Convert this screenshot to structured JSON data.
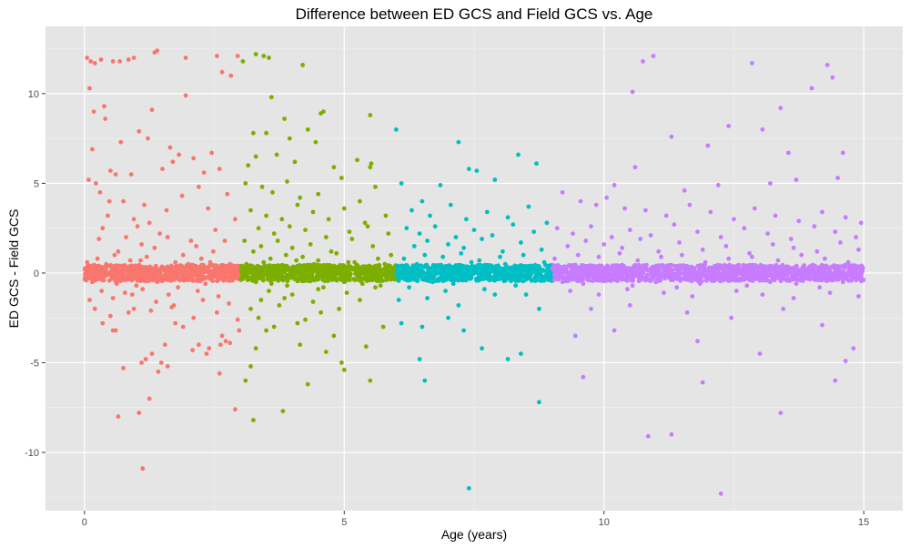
{
  "chart_data": {
    "type": "scatter",
    "title": "Difference between ED GCS and Field GCS vs. Age",
    "xlabel": "Age (years)",
    "ylabel": "ED GCS - Field GCS",
    "xlim": [
      -0.75,
      15.75
    ],
    "ylim": [
      -13.25,
      13.75
    ],
    "xticks": [
      0,
      5,
      10,
      15
    ],
    "yticks": [
      -10,
      -5,
      0,
      5,
      10
    ],
    "grid": true,
    "legend": "none",
    "background": "#e5e5e5",
    "series": [
      {
        "color": "#f8766d",
        "x": [
          0.05,
          0.12,
          0.2,
          0.32,
          0.55,
          0.68,
          0.85,
          0.95,
          1.35,
          1.4,
          1.95,
          2.55,
          2.65,
          2.82,
          2.95,
          0.18,
          0.38,
          1.95,
          0.1,
          0.15,
          0.4,
          1.05,
          1.3,
          0.7,
          1.22,
          1.65,
          1.82,
          2.1,
          2.45,
          0.6,
          0.5,
          0.08,
          0.22,
          0.9,
          1.5,
          1.7,
          2.3,
          2.6,
          2.2,
          0.3,
          0.48,
          0.75,
          1.15,
          1.88,
          2.75,
          0.45,
          0.95,
          1.25,
          1.58,
          2.38,
          2.9,
          0.35,
          0.8,
          1.02,
          1.45,
          2.05,
          2.52,
          0.28,
          1.1,
          1.6,
          2.15,
          2.7,
          0.65,
          1.35,
          1.9,
          2.48,
          0.25,
          0.58,
          0.88,
          1.2,
          1.75,
          2.25,
          2.8,
          0.05,
          0.42,
          0.72,
          1.08,
          1.52,
          2.0,
          2.42,
          2.88,
          0.15,
          0.62,
          1.0,
          1.4,
          1.8,
          2.33,
          2.85,
          0.33,
          0.78,
          1.12,
          1.62,
          2.18,
          2.58,
          0.1,
          0.55,
          0.92,
          1.38,
          1.72,
          2.28,
          2.78,
          0.2,
          0.5,
          0.85,
          1.28,
          1.68,
          2.1,
          2.55,
          2.95,
          1.9,
          2.65,
          2.2,
          0.35,
          0.6,
          2.4,
          1.55,
          1.3,
          1.18,
          1.6,
          2.62,
          2.72,
          0.75,
          2.08,
          1.48,
          0.55,
          0.95,
          1.75,
          2.35,
          2.8,
          2.98,
          1.1,
          2.6,
          1.42,
          1.25,
          0.65,
          1.05,
          2.9,
          1.12
        ],
        "y": [
          12.0,
          11.8,
          11.7,
          11.9,
          11.8,
          11.8,
          11.9,
          12.0,
          12.3,
          12.4,
          12.0,
          12.1,
          11.2,
          11.0,
          12.1,
          9.0,
          9.3,
          9.9,
          10.3,
          6.9,
          8.6,
          7.9,
          9.1,
          7.3,
          7.5,
          7.0,
          6.6,
          6.4,
          6.7,
          5.5,
          5.7,
          5.2,
          5.0,
          5.5,
          5.8,
          6.2,
          5.6,
          5.8,
          4.8,
          4.5,
          4.0,
          4.0,
          3.8,
          4.3,
          4.4,
          3.2,
          3.0,
          2.8,
          3.5,
          3.6,
          3.0,
          2.5,
          2.0,
          2.6,
          2.2,
          1.8,
          2.4,
          1.9,
          1.6,
          2.0,
          1.5,
          1.8,
          1.2,
          1.4,
          1.0,
          1.2,
          0.8,
          1.0,
          0.7,
          0.9,
          0.6,
          0.8,
          0.5,
          0.6,
          0.5,
          0.4,
          0.7,
          0.3,
          0.5,
          0.6,
          0.4,
          -0.5,
          -0.6,
          -0.7,
          -0.5,
          -0.8,
          -0.6,
          -0.4,
          -1.0,
          -1.1,
          -0.9,
          -1.2,
          -1.0,
          -1.3,
          -1.5,
          -1.4,
          -1.2,
          -1.6,
          -1.8,
          -1.5,
          -1.7,
          -2.0,
          -2.4,
          -2.2,
          -2.1,
          -1.9,
          -2.5,
          -2.2,
          -2.6,
          -3.0,
          -3.5,
          -4.0,
          -2.8,
          -3.2,
          -4.2,
          -4.0,
          -4.5,
          -4.8,
          -5.2,
          -4.0,
          -3.8,
          -5.3,
          -4.3,
          -5.0,
          -3.2,
          -2.0,
          -2.8,
          -4.5,
          -3.9,
          -3.2,
          -5.0,
          -5.6,
          -5.5,
          -7.0,
          -8.0,
          -7.8,
          -7.6,
          -10.9
        ]
      },
      {
        "color": "#7cae00",
        "x": [
          3.05,
          3.3,
          3.45,
          3.55,
          4.2,
          3.6,
          3.25,
          3.5,
          3.85,
          3.95,
          4.3,
          4.55,
          4.6,
          5.5,
          4.45,
          3.15,
          3.3,
          3.7,
          4.05,
          4.8,
          5.25,
          5.5,
          5.52,
          3.1,
          3.42,
          3.62,
          3.9,
          4.15,
          4.5,
          4.95,
          5.3,
          5.6,
          3.2,
          3.5,
          3.8,
          4.1,
          4.4,
          4.7,
          5.0,
          5.4,
          5.8,
          3.35,
          3.65,
          3.95,
          4.25,
          4.65,
          5.1,
          5.45,
          5.85,
          3.08,
          3.4,
          3.72,
          4.0,
          4.35,
          4.75,
          5.15,
          5.55,
          5.9,
          3.25,
          3.58,
          3.88,
          4.2,
          4.5,
          4.85,
          5.2,
          5.65,
          3.12,
          3.45,
          3.78,
          4.08,
          4.42,
          4.78,
          5.08,
          5.48,
          5.78,
          3.3,
          3.6,
          3.9,
          4.3,
          4.6,
          5.0,
          5.35,
          5.7,
          3.55,
          4.0,
          4.5,
          5.05,
          5.6,
          3.4,
          3.85,
          4.4,
          3.2,
          3.75,
          4.55,
          5.3,
          3.35,
          4.1,
          4.9,
          3.65,
          4.25,
          3.5,
          4.8,
          5.42,
          4.95,
          5.0,
          4.65,
          3.3,
          4.3,
          5.5,
          3.1,
          5.75,
          4.15,
          3.25,
          3.82,
          3.2
        ],
        "y": [
          11.8,
          12.2,
          12.1,
          12.0,
          11.6,
          9.8,
          7.8,
          7.8,
          8.6,
          7.5,
          8.0,
          8.9,
          9.0,
          8.8,
          7.3,
          6.0,
          6.5,
          6.6,
          6.2,
          5.9,
          6.3,
          5.9,
          6.1,
          5.0,
          4.8,
          4.5,
          5.1,
          4.2,
          4.4,
          5.3,
          4.0,
          4.8,
          3.5,
          3.2,
          3.0,
          3.8,
          3.4,
          3.0,
          3.6,
          2.8,
          3.2,
          2.5,
          2.2,
          2.6,
          2.4,
          2.0,
          2.3,
          2.6,
          2.2,
          1.8,
          1.5,
          1.8,
          1.4,
          1.6,
          1.2,
          1.9,
          1.5,
          1.0,
          1.2,
          0.8,
          1.0,
          0.9,
          0.7,
          1.1,
          0.6,
          0.8,
          0.5,
          0.6,
          0.4,
          0.7,
          0.5,
          0.3,
          0.6,
          0.4,
          0.5,
          -0.5,
          -0.6,
          -0.7,
          -0.4,
          -0.8,
          -0.5,
          -0.6,
          -0.7,
          -1.0,
          -1.2,
          -0.9,
          -1.1,
          -0.8,
          -1.5,
          -1.4,
          -1.6,
          -2.0,
          -1.8,
          -2.2,
          -1.5,
          -2.5,
          -2.8,
          -2.0,
          -3.0,
          -2.6,
          -3.2,
          -3.5,
          -4.1,
          -5.0,
          -5.4,
          -4.4,
          -4.2,
          -6.2,
          -6.0,
          -6.0,
          -3.0,
          -4.0,
          -8.2,
          -7.7,
          -5.2
        ],
        "r": 0
      },
      {
        "color": "#00bfc4",
        "x": [
          6.0,
          7.2,
          8.35,
          8.7,
          7.4,
          6.1,
          6.85,
          7.55,
          7.9,
          6.5,
          6.3,
          6.65,
          7.05,
          7.35,
          7.75,
          8.15,
          8.55,
          8.9,
          6.2,
          6.45,
          6.75,
          7.15,
          7.5,
          7.85,
          8.25,
          8.65,
          6.35,
          6.6,
          7.0,
          7.3,
          7.65,
          8.05,
          8.4,
          8.8,
          6.15,
          6.55,
          6.9,
          7.25,
          7.6,
          8.0,
          8.45,
          8.85,
          6.4,
          6.8,
          7.45,
          8.1,
          8.6,
          6.7,
          7.1,
          7.8,
          8.3,
          6.25,
          6.95,
          7.7,
          8.5,
          6.05,
          6.6,
          7.2,
          7.9,
          8.75,
          7.0,
          7.3,
          6.5,
          6.45,
          8.4,
          8.75,
          7.65,
          8.15,
          6.1,
          6.55,
          7.4
        ],
        "y": [
          8.0,
          7.3,
          6.6,
          6.1,
          5.8,
          5.0,
          4.9,
          5.7,
          5.2,
          4.0,
          3.5,
          3.2,
          3.8,
          3.0,
          3.4,
          3.1,
          3.7,
          2.8,
          2.5,
          2.2,
          2.6,
          2.0,
          2.4,
          2.1,
          2.7,
          2.3,
          1.5,
          1.8,
          1.6,
          1.4,
          1.9,
          1.2,
          1.7,
          1.3,
          0.8,
          1.0,
          0.9,
          1.1,
          0.7,
          0.9,
          1.0,
          0.6,
          0.5,
          0.4,
          0.6,
          0.5,
          0.4,
          -0.5,
          -0.6,
          -0.4,
          -0.7,
          -0.8,
          -1.0,
          -0.9,
          -1.2,
          -1.5,
          -1.4,
          -1.8,
          -1.2,
          -2.0,
          -2.5,
          -3.2,
          -3.0,
          -4.8,
          -4.5,
          -7.2,
          -4.2,
          -4.8,
          -2.8,
          -6.0,
          -12.0
        ],
        "r": 0
      },
      {
        "color": "#c77cff",
        "x": [
          10.95,
          10.75,
          12.85,
          14.3,
          10.55,
          13.4,
          14.0,
          14.4,
          11.3,
          12.4,
          12.0,
          13.05,
          13.55,
          14.6,
          10.2,
          10.6,
          11.55,
          12.2,
          13.2,
          13.7,
          14.5,
          9.2,
          9.55,
          9.85,
          10.05,
          10.4,
          10.8,
          11.2,
          11.65,
          12.05,
          12.5,
          12.9,
          13.3,
          13.75,
          14.2,
          14.65,
          14.95,
          9.1,
          9.4,
          9.75,
          10.15,
          10.5,
          10.9,
          11.35,
          11.8,
          12.25,
          12.7,
          13.15,
          13.6,
          14.05,
          14.45,
          14.85,
          9.3,
          9.65,
          10.0,
          10.35,
          10.7,
          11.05,
          11.45,
          11.9,
          12.35,
          12.8,
          13.25,
          13.65,
          14.1,
          14.55,
          14.9,
          9.05,
          9.5,
          9.9,
          10.3,
          10.65,
          11.1,
          11.5,
          11.95,
          12.4,
          12.85,
          13.35,
          13.8,
          14.25,
          14.7,
          9.2,
          9.6,
          10.1,
          10.55,
          11.0,
          11.4,
          11.85,
          12.3,
          12.75,
          13.2,
          13.7,
          14.15,
          14.6,
          9.35,
          9.9,
          10.45,
          11.15,
          11.7,
          12.55,
          13.05,
          13.65,
          14.35,
          14.9,
          9.75,
          10.5,
          11.6,
          12.45,
          13.45,
          14.2,
          9.45,
          10.2,
          11.8,
          13.0,
          14.8,
          9.6,
          11.9,
          13.4,
          14.45,
          14.65,
          10.85,
          11.3,
          12.25
        ],
        "y": [
          12.1,
          11.8,
          11.7,
          11.6,
          10.1,
          9.2,
          10.3,
          10.9,
          7.6,
          8.2,
          7.1,
          8.0,
          6.7,
          6.7,
          4.9,
          5.9,
          4.6,
          4.9,
          5.0,
          5.2,
          5.3,
          4.5,
          4.0,
          3.8,
          4.2,
          3.6,
          3.5,
          3.2,
          3.8,
          3.4,
          3.0,
          3.6,
          3.2,
          2.9,
          3.4,
          3.1,
          2.8,
          2.5,
          2.2,
          2.6,
          2.0,
          2.4,
          2.1,
          2.7,
          2.3,
          2.0,
          2.5,
          2.2,
          1.9,
          2.6,
          2.3,
          2.0,
          1.5,
          1.8,
          1.6,
          1.4,
          1.9,
          1.2,
          1.7,
          1.3,
          1.5,
          1.1,
          1.6,
          1.4,
          1.2,
          1.7,
          1.3,
          0.8,
          1.0,
          0.9,
          1.1,
          0.7,
          0.9,
          1.0,
          0.6,
          0.8,
          0.9,
          0.7,
          1.0,
          0.8,
          0.6,
          -0.5,
          -0.6,
          -0.4,
          -0.7,
          -0.5,
          -0.8,
          -0.6,
          -0.4,
          -0.7,
          -0.5,
          -0.6,
          -0.8,
          -0.5,
          -1.0,
          -1.2,
          -0.9,
          -1.1,
          -1.3,
          -1.0,
          -1.2,
          -1.4,
          -1.1,
          -1.3,
          -2.0,
          -1.8,
          -2.2,
          -2.5,
          -2.0,
          -2.9,
          -3.5,
          -3.2,
          -3.8,
          -4.5,
          -4.2,
          -5.8,
          -6.1,
          -7.8,
          -6.0,
          -4.9,
          -9.1,
          -9.0,
          -12.3
        ],
        "r": 0
      }
    ]
  }
}
